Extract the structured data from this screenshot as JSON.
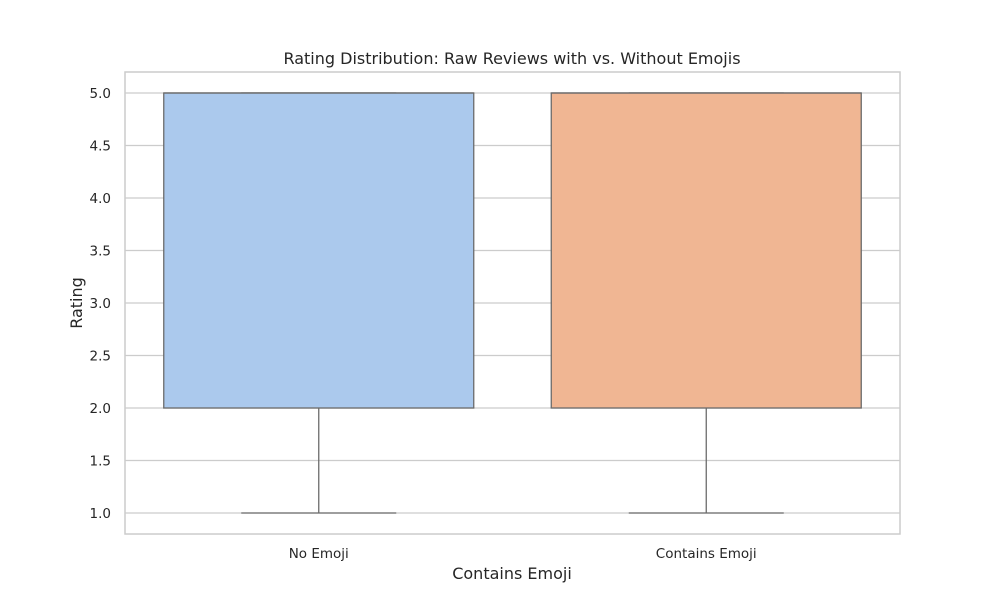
{
  "chart_data": {
    "type": "box",
    "title": "Rating Distribution: Raw Reviews with vs. Without Emojis",
    "xlabel": "Contains Emoji",
    "ylabel": "Rating",
    "categories": [
      "No Emoji",
      "Contains Emoji"
    ],
    "boxes": [
      {
        "category": "No Emoji",
        "whisker_low": 1.0,
        "q1": 2.0,
        "median": 5.0,
        "q3": 5.0,
        "whisker_high": 5.0,
        "color": "#abc9ed"
      },
      {
        "category": "Contains Emoji",
        "whisker_low": 1.0,
        "q1": 2.0,
        "median": 5.0,
        "q3": 5.0,
        "whisker_high": 5.0,
        "color": "#f0b693"
      }
    ],
    "ylim": [
      0.8,
      5.2
    ],
    "yticks": [
      "1.0",
      "1.5",
      "2.0",
      "2.5",
      "3.0",
      "3.5",
      "4.0",
      "4.5",
      "5.0"
    ],
    "grid": true,
    "frame_color": "#cccccc",
    "line_color": "#6b6b6b"
  }
}
